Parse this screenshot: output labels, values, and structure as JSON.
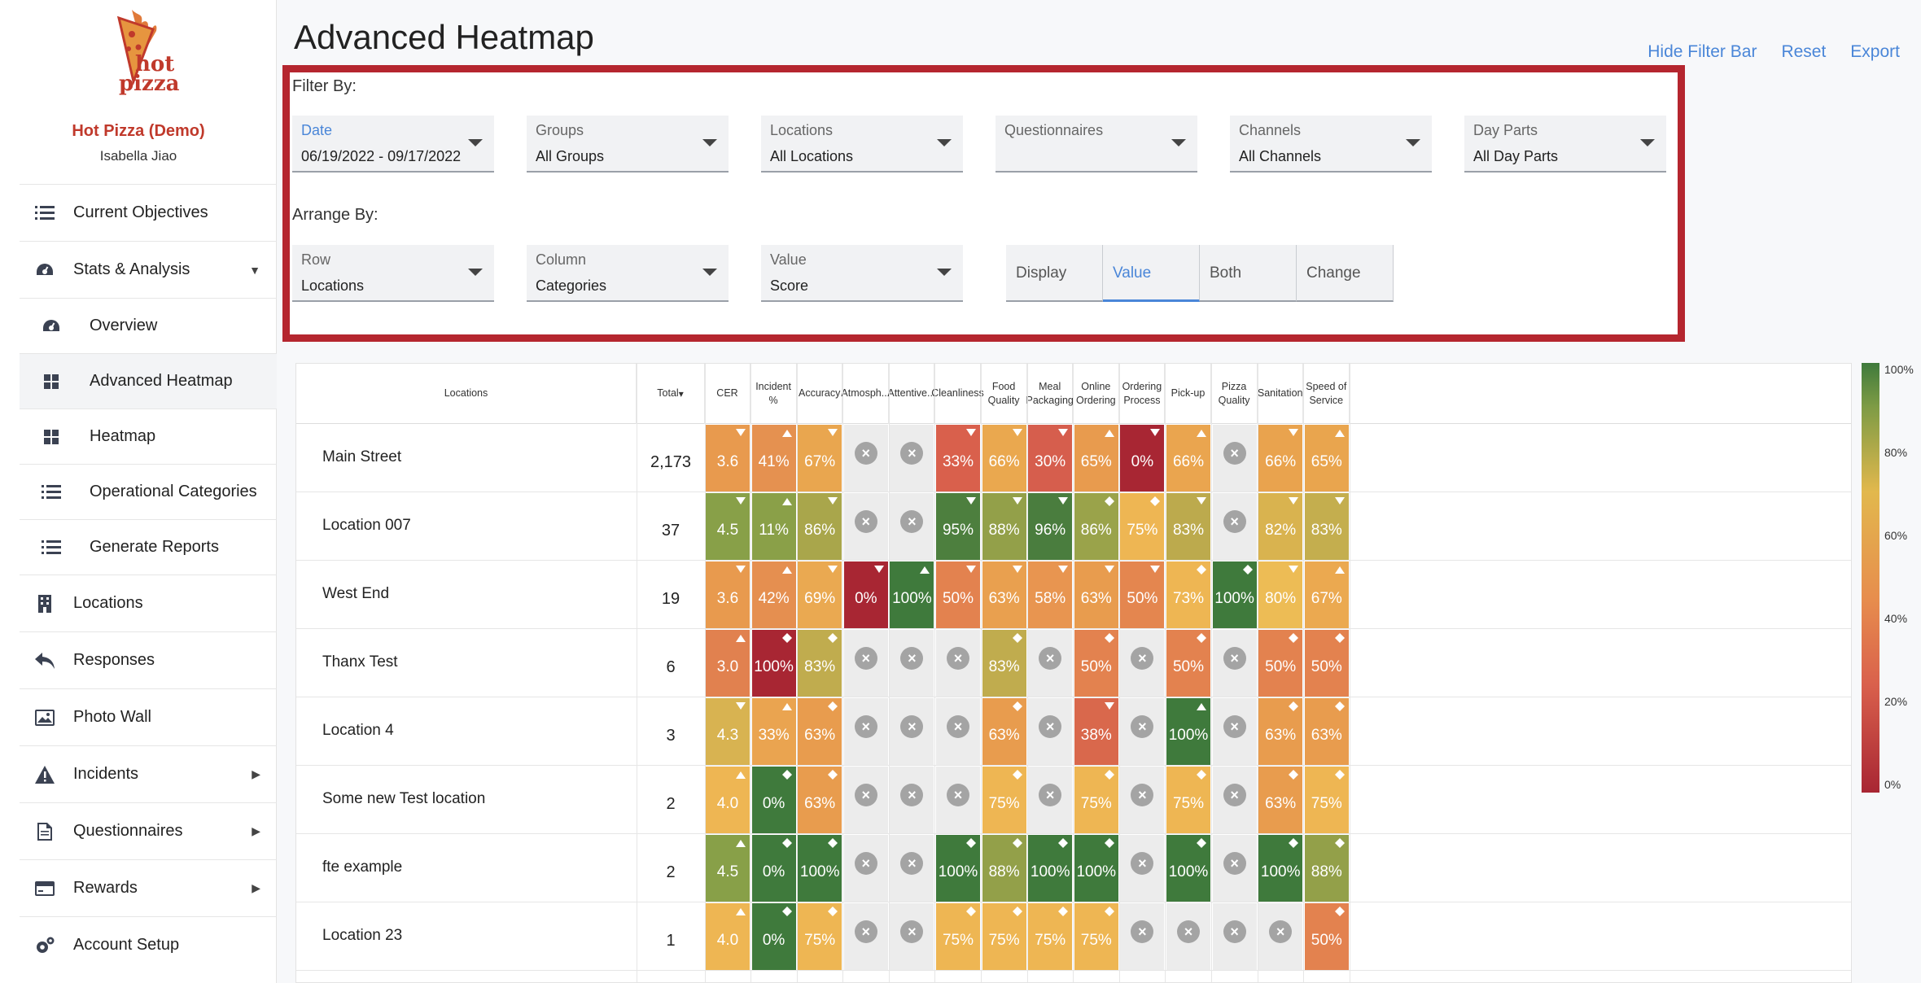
{
  "brand": {
    "logo_text_1": "hot",
    "logo_text_2": "pizza",
    "name": "Hot Pizza (Demo)",
    "user": "Isabella Jiao"
  },
  "nav": [
    {
      "label": "Current Objectives",
      "icon": "list-icon"
    },
    {
      "label": "Stats & Analysis",
      "icon": "dashboard-icon",
      "expanded": true
    },
    {
      "label": "Overview",
      "icon": "dashboard-icon",
      "sub": true
    },
    {
      "label": "Advanced Heatmap",
      "icon": "grid-icon",
      "sub": true,
      "active": true
    },
    {
      "label": "Heatmap",
      "icon": "grid-icon",
      "sub": true
    },
    {
      "label": "Operational Categories",
      "icon": "list-icon",
      "sub": true
    },
    {
      "label": "Generate Reports",
      "icon": "list-icon",
      "sub": true
    },
    {
      "label": "Locations",
      "icon": "building-icon"
    },
    {
      "label": "Responses",
      "icon": "reply-icon"
    },
    {
      "label": "Photo Wall",
      "icon": "image-icon"
    },
    {
      "label": "Incidents",
      "icon": "warning-icon",
      "submenu": true
    },
    {
      "label": "Questionnaires",
      "icon": "document-icon",
      "submenu": true
    },
    {
      "label": "Rewards",
      "icon": "card-icon",
      "submenu": true
    },
    {
      "label": "Account Setup",
      "icon": "gear-icon"
    }
  ],
  "page": {
    "title": "Advanced Heatmap",
    "actions": [
      "Hide Filter Bar",
      "Reset",
      "Export"
    ]
  },
  "filters": {
    "filter_by_label": "Filter By:",
    "arrange_by_label": "Arrange By:",
    "date": {
      "label": "Date",
      "value": "06/19/2022 - 09/17/2022"
    },
    "groups": {
      "label": "Groups",
      "value": "All Groups"
    },
    "locations": {
      "label": "Locations",
      "value": "All Locations"
    },
    "questionnaires": {
      "label": "Questionnaires",
      "value": ""
    },
    "channels": {
      "label": "Channels",
      "value": "All Channels"
    },
    "day_parts": {
      "label": "Day Parts",
      "value": "All Day Parts"
    },
    "row": {
      "label": "Row",
      "value": "Locations"
    },
    "column": {
      "label": "Column",
      "value": "Categories"
    },
    "value": {
      "label": "Value",
      "value": "Score"
    },
    "display_options": [
      "Display",
      "Value",
      "Both",
      "Change"
    ],
    "display_selected": "Value"
  },
  "table": {
    "row_header": "Locations",
    "total_header": "Total",
    "columns": [
      "CER",
      "Incident %",
      "Accuracy",
      "Atmosph...",
      "Attentive...",
      "Cleanliness",
      "Food Quality",
      "Meal Packaging",
      "Online Ordering",
      "Ordering Process",
      "Pick-up",
      "Pizza Quality",
      "Sanitation",
      "Speed of Service"
    ],
    "rows": [
      {
        "name": "Main Street",
        "total": "2,173",
        "cells": [
          [
            "3.6",
            "#e89a4e",
            "down"
          ],
          [
            "41%",
            "#e59150",
            "up"
          ],
          [
            "67%",
            "#e9a64f",
            "down"
          ],
          [
            null
          ],
          [
            null
          ],
          [
            "33%",
            "#d9604c",
            "down"
          ],
          [
            "66%",
            "#eaa84f",
            "down"
          ],
          [
            "30%",
            "#d65e4d",
            "down"
          ],
          [
            "65%",
            "#e89b4e",
            "up"
          ],
          [
            "0%",
            "#a82633",
            "down"
          ],
          [
            "66%",
            "#eaa54f",
            "up"
          ],
          [
            null
          ],
          [
            "66%",
            "#e9a34e",
            "down"
          ],
          [
            "65%",
            "#e9a54e",
            "up"
          ]
        ]
      },
      {
        "name": "Location 007",
        "total": "37",
        "cells": [
          [
            "4.5",
            "#88a048",
            "down"
          ],
          [
            "11%",
            "#8aa048",
            "up"
          ],
          [
            "86%",
            "#a9a64b",
            "down"
          ],
          [
            null
          ],
          [
            null
          ],
          [
            "95%",
            "#4d7f3e",
            "down"
          ],
          [
            "88%",
            "#93a049",
            "down"
          ],
          [
            "96%",
            "#4a7d3e",
            "down"
          ],
          [
            "86%",
            "#9aa34a",
            "diamond"
          ],
          [
            "75%",
            "#eeb653",
            "diamond"
          ],
          [
            "83%",
            "#bcaa4d",
            "down"
          ],
          [
            null
          ],
          [
            "82%",
            "#d9b34f",
            "down"
          ],
          [
            "83%",
            "#c4ae4e",
            "down"
          ]
        ]
      },
      {
        "name": "West End",
        "total": "19",
        "cells": [
          [
            "3.6",
            "#e89a4e",
            "down"
          ],
          [
            "42%",
            "#e58f50",
            "up"
          ],
          [
            "69%",
            "#eaa951",
            "down"
          ],
          [
            "0%",
            "#a82633",
            "down"
          ],
          [
            "100%",
            "#3f7a3c",
            "up"
          ],
          [
            "50%",
            "#e3824f",
            "down"
          ],
          [
            "63%",
            "#e9a04f",
            "down"
          ],
          [
            "58%",
            "#e89550",
            "down"
          ],
          [
            "63%",
            "#e89c4e",
            "down"
          ],
          [
            "50%",
            "#e4864f",
            "down"
          ],
          [
            "73%",
            "#eeb653",
            "diamond"
          ],
          [
            "100%",
            "#3f7a3c",
            "diamond"
          ],
          [
            "80%",
            "#edbc55",
            "down"
          ],
          [
            "67%",
            "#eba950",
            "up"
          ]
        ]
      },
      {
        "name": "Thanx Test",
        "total": "6",
        "cells": [
          [
            "3.0",
            "#e1814f",
            "up"
          ],
          [
            "100%",
            "#a82633",
            "diamond"
          ],
          [
            "83%",
            "#c0ac4e",
            "diamond"
          ],
          [
            null
          ],
          [
            null
          ],
          [
            null
          ],
          [
            "83%",
            "#c0ac4e",
            "diamond"
          ],
          [
            null
          ],
          [
            "50%",
            "#e3824f",
            "diamond"
          ],
          [
            null
          ],
          [
            "50%",
            "#e3824f",
            "diamond"
          ],
          [
            null
          ],
          [
            "50%",
            "#e3824f",
            "diamond"
          ],
          [
            "50%",
            "#e3824f",
            "diamond"
          ]
        ]
      },
      {
        "name": "Location 4",
        "total": "3",
        "cells": [
          [
            "4.3",
            "#d8b351",
            "down"
          ],
          [
            "33%",
            "#eaa450",
            "up"
          ],
          [
            "63%",
            "#e89c4e",
            "diamond"
          ],
          [
            null
          ],
          [
            null
          ],
          [
            null
          ],
          [
            "63%",
            "#e89c4e",
            "diamond"
          ],
          [
            null
          ],
          [
            "38%",
            "#d9684c",
            "down"
          ],
          [
            null
          ],
          [
            "100%",
            "#3f7a3c",
            "up"
          ],
          [
            null
          ],
          [
            "63%",
            "#e89c4e",
            "diamond"
          ],
          [
            "63%",
            "#e89c4e",
            "diamond"
          ]
        ]
      },
      {
        "name": "Some new Test location",
        "total": "2",
        "cells": [
          [
            "4.0",
            "#eeb653",
            "up"
          ],
          [
            "0%",
            "#3f7a3c",
            "diamond"
          ],
          [
            "63%",
            "#e89c4e",
            "diamond"
          ],
          [
            null
          ],
          [
            null
          ],
          [
            null
          ],
          [
            "75%",
            "#eeb653",
            "diamond"
          ],
          [
            null
          ],
          [
            "75%",
            "#eeb653",
            "diamond"
          ],
          [
            null
          ],
          [
            "75%",
            "#eeb653",
            "diamond"
          ],
          [
            null
          ],
          [
            "63%",
            "#e89c4e",
            "diamond"
          ],
          [
            "75%",
            "#eeb653",
            "diamond"
          ]
        ]
      },
      {
        "name": "fte example",
        "total": "2",
        "cells": [
          [
            "4.5",
            "#88a048",
            "up"
          ],
          [
            "0%",
            "#3f7a3c",
            "diamond"
          ],
          [
            "100%",
            "#3f7a3c",
            "diamond"
          ],
          [
            null
          ],
          [
            null
          ],
          [
            "100%",
            "#3f7a3c",
            "diamond"
          ],
          [
            "88%",
            "#93a049",
            "diamond"
          ],
          [
            "100%",
            "#3f7a3c",
            "diamond"
          ],
          [
            "100%",
            "#3f7a3c",
            "diamond"
          ],
          [
            null
          ],
          [
            "100%",
            "#3f7a3c",
            "diamond"
          ],
          [
            null
          ],
          [
            "100%",
            "#3f7a3c",
            "diamond"
          ],
          [
            "88%",
            "#93a049",
            "diamond"
          ]
        ]
      },
      {
        "name": "Location 23",
        "total": "1",
        "cells": [
          [
            "4.0",
            "#eeb653",
            "up"
          ],
          [
            "0%",
            "#3f7a3c",
            "diamond"
          ],
          [
            "75%",
            "#eeb653",
            "diamond"
          ],
          [
            null
          ],
          [
            null
          ],
          [
            "75%",
            "#eeb653",
            "diamond"
          ],
          [
            "75%",
            "#eeb653",
            "diamond"
          ],
          [
            "75%",
            "#eeb653",
            "diamond"
          ],
          [
            "75%",
            "#eeb653",
            "diamond"
          ],
          [
            null
          ],
          [
            null
          ],
          [
            null
          ],
          [
            null
          ],
          [
            "50%",
            "#e3824f",
            "diamond"
          ]
        ]
      }
    ]
  },
  "legend": {
    "labels": [
      "100%",
      "80%",
      "60%",
      "40%",
      "20%",
      "0%"
    ]
  }
}
